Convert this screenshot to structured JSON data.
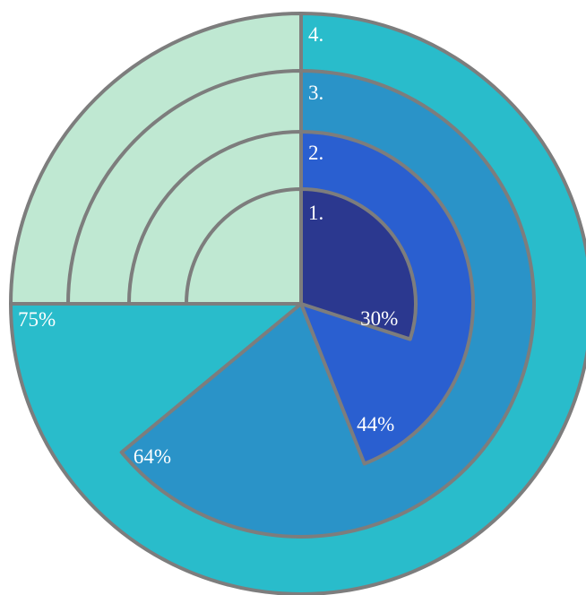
{
  "chart_data": {
    "type": "radial-progress",
    "title": "",
    "series": [
      {
        "index_label": "1.",
        "value": 30,
        "value_label": "30%"
      },
      {
        "index_label": "2.",
        "value": 44,
        "value_label": "44%"
      },
      {
        "index_label": "3.",
        "value": 64,
        "value_label": "64%"
      },
      {
        "index_label": "4.",
        "value": 75,
        "value_label": "75%"
      }
    ],
    "direction": "clockwise from 12 o'clock",
    "colors": {
      "ring_fills": [
        "#2b388f",
        "#2a5fd0",
        "#2a93c8",
        "#29bccb"
      ],
      "remainder": "#bfe8d2",
      "stroke": "#7d7d7d",
      "label": "#ffffff"
    }
  }
}
